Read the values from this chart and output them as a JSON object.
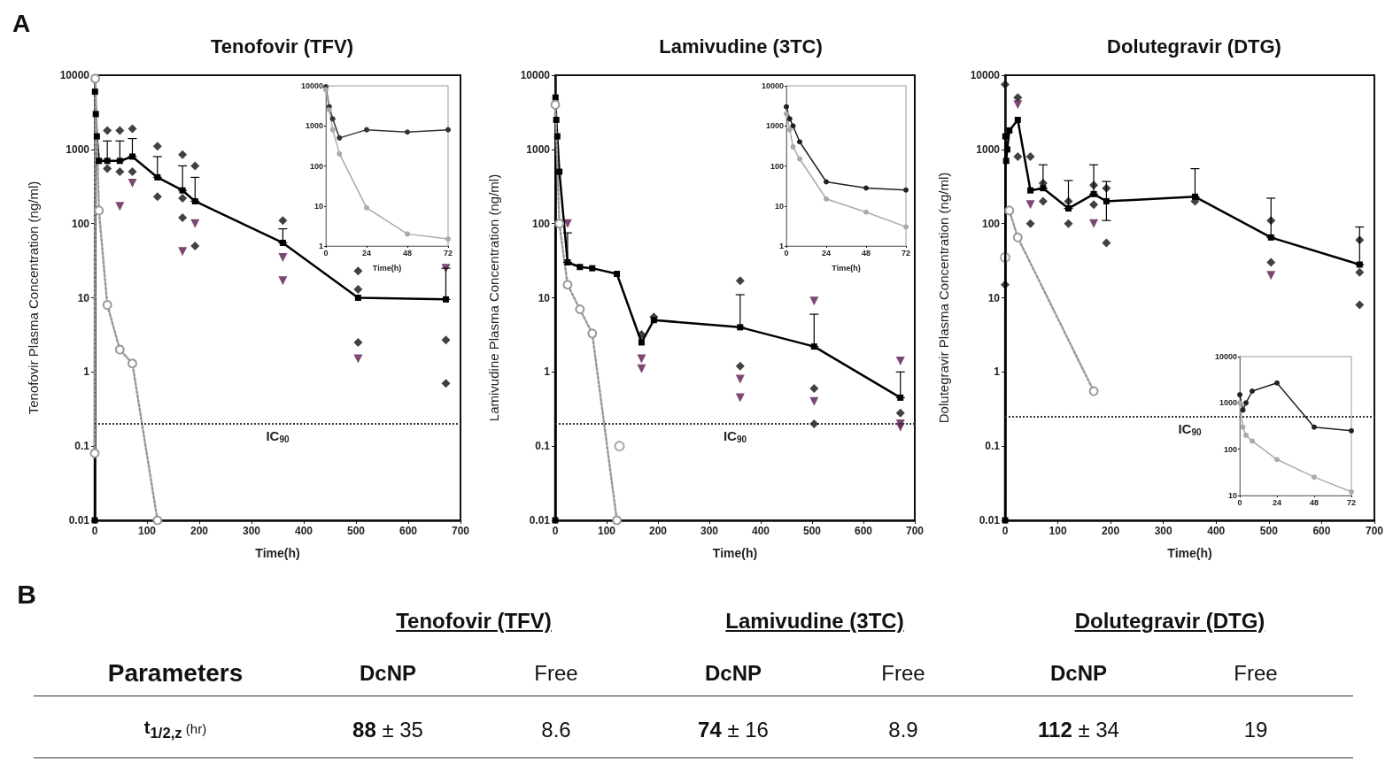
{
  "chart_data": [
    {
      "type": "line",
      "title": "Tenofovir (TFV)",
      "xlabel": "Time(h)",
      "ylabel": "Tenofovir Plasma Concentration (ng/ml)",
      "annotations": [
        "A"
      ],
      "log": "y",
      "xlim": [
        0,
        700
      ],
      "xticks": [
        0,
        100,
        200,
        300,
        400,
        500,
        600,
        700
      ],
      "ylim": [
        0.01,
        10000
      ],
      "yticks": [
        0.01,
        0.1,
        1,
        10,
        100,
        1000,
        10000
      ],
      "ref_lines": [
        {
          "axis": "y",
          "value": 0.2,
          "label": "IC$_{90}$",
          "line_style": "dotted",
          "color": "#333333"
        }
      ],
      "series": [
        {
          "type": "line",
          "color": "#000000",
          "marker": "square",
          "x": [
            0,
            0.5,
            2,
            4,
            8,
            24,
            48,
            72,
            120,
            168,
            192,
            360,
            504,
            672
          ],
          "values": [
            0.01,
            6000,
            3000,
            1500,
            700,
            700,
            700,
            800,
            420,
            280,
            200,
            55,
            10,
            9.5
          ],
          "errors": [
            null,
            null,
            null,
            null,
            null,
            [
              700,
              1300
            ],
            [
              700,
              1300
            ],
            [
              800,
              1400
            ],
            [
              420,
              800
            ],
            [
              280,
              600
            ],
            [
              200,
              420
            ],
            [
              55,
              85
            ],
            null,
            [
              9.5,
              25
            ]
          ]
        },
        {
          "type": "line",
          "color": "#999999",
          "marker": "circle",
          "line_style": "dotted",
          "x": [
            0,
            1,
            8,
            24,
            48,
            72,
            120
          ],
          "values": [
            0.08,
            9000,
            150,
            8,
            2,
            1.3,
            0.01
          ]
        },
        {
          "type": "scatter",
          "color": "#111111",
          "marker": "diamond",
          "x": [
            24,
            48,
            72,
            120,
            168,
            192,
            24,
            48,
            72,
            120,
            168,
            168,
            192,
            360,
            504,
            504,
            504,
            672,
            672
          ],
          "values": [
            1800,
            1800,
            1900,
            1100,
            850,
            600,
            550,
            500,
            500,
            230,
            220,
            120,
            50,
            110,
            23,
            13,
            2.5,
            2.7,
            0.7
          ]
        },
        {
          "type": "scatter",
          "color": "#5b1a50",
          "marker": "triangle",
          "x": [
            48,
            72,
            168,
            192,
            360,
            360,
            504,
            672
          ],
          "values": [
            170,
            350,
            42,
            100,
            35,
            17,
            1.5,
            25
          ]
        }
      ]
    },
    {
      "type": "line",
      "xlabel": "Time(h)",
      "log": "y",
      "xlim": [
        0,
        72
      ],
      "xticks": [
        0,
        24,
        48,
        72
      ],
      "ylim": [
        1,
        10000
      ],
      "yticks": [
        1,
        10,
        100,
        1000,
        10000
      ],
      "series": [
        {
          "type": "line",
          "color": "#333333",
          "marker": "circle",
          "x": [
            0,
            2,
            4,
            8,
            24,
            48,
            72
          ],
          "values": [
            9500,
            3000,
            1500,
            500,
            800,
            700,
            800
          ]
        },
        {
          "type": "line",
          "color": "#aaaaaa",
          "marker": "circle",
          "x": [
            0,
            2,
            4,
            8,
            24,
            48,
            72
          ],
          "values": [
            8000,
            2500,
            800,
            200,
            9,
            2,
            1.5
          ]
        }
      ]
    },
    {
      "type": "line",
      "title": "Lamivudine (3TC)",
      "xlabel": "Time(h)",
      "ylabel": "Lamivudine Plasma Concentration (ng/ml)",
      "log": "y",
      "xlim": [
        0,
        700
      ],
      "xticks": [
        0,
        100,
        200,
        300,
        400,
        500,
        600,
        700
      ],
      "ylim": [
        0.01,
        10000
      ],
      "yticks": [
        0.01,
        0.1,
        1,
        10,
        100,
        1000,
        10000
      ],
      "ref_lines": [
        {
          "axis": "y",
          "value": 0.2,
          "label": "IC$_{90}$",
          "line_style": "dotted",
          "color": "#333333"
        }
      ],
      "series": [
        {
          "type": "line",
          "color": "#000000",
          "marker": "square",
          "x": [
            0,
            0.5,
            2,
            4,
            8,
            24,
            48,
            72,
            120,
            168,
            192,
            360,
            504,
            672
          ],
          "values": [
            0.01,
            5000,
            2500,
            1500,
            500,
            30,
            26,
            25,
            21,
            2.5,
            5,
            4,
            2.2,
            0.45
          ],
          "errors": [
            null,
            null,
            null,
            null,
            null,
            [
              30,
              75
            ],
            null,
            null,
            null,
            null,
            null,
            [
              4,
              11
            ],
            [
              2.2,
              6
            ],
            [
              0.45,
              1
            ]
          ]
        },
        {
          "type": "line",
          "color": "#999999",
          "marker": "circle",
          "line_style": "dotted",
          "x": [
            0,
            8,
            24,
            48,
            72,
            120
          ],
          "values": [
            4000,
            100,
            15,
            7,
            3.3,
            0.01
          ]
        },
        {
          "type": "scatter",
          "color": "#999999",
          "marker": "circle",
          "x": [
            125
          ],
          "values": [
            0.1
          ]
        },
        {
          "type": "scatter",
          "color": "#111111",
          "marker": "diamond",
          "x": [
            168,
            192,
            360,
            360,
            504,
            504,
            672
          ],
          "values": [
            3.2,
            5.5,
            17,
            1.2,
            0.6,
            0.2,
            0.28
          ]
        },
        {
          "type": "scatter",
          "color": "#5b1a50",
          "marker": "triangle",
          "x": [
            24,
            168,
            168,
            360,
            360,
            504,
            504,
            672,
            672,
            672
          ],
          "values": [
            100,
            1.5,
            1.1,
            0.8,
            0.45,
            9,
            0.4,
            1.4,
            0.2,
            0.18
          ]
        }
      ]
    },
    {
      "type": "line",
      "xlabel": "Time(h)",
      "log": "y",
      "xlim": [
        0,
        72
      ],
      "xticks": [
        0,
        24,
        48,
        72
      ],
      "ylim": [
        1,
        10000
      ],
      "yticks": [
        1,
        10,
        100,
        1000,
        10000
      ],
      "series": [
        {
          "type": "line",
          "color": "#222222",
          "marker": "circle",
          "x": [
            0,
            2,
            4,
            8,
            24,
            48,
            72
          ],
          "values": [
            3000,
            1500,
            1000,
            400,
            40,
            28,
            25
          ]
        },
        {
          "type": "line",
          "color": "#aaaaaa",
          "marker": "circle",
          "x": [
            0,
            2,
            4,
            8,
            24,
            48,
            72
          ],
          "values": [
            2000,
            800,
            300,
            150,
            15,
            7,
            3
          ]
        }
      ]
    },
    {
      "type": "line",
      "title": "Dolutegravir (DTG)",
      "xlabel": "Time(h)",
      "ylabel": "Dolutegravir Plasma Concentration (ng/ml)",
      "log": "y",
      "xlim": [
        0,
        700
      ],
      "xticks": [
        0,
        100,
        200,
        300,
        400,
        500,
        600,
        700
      ],
      "ylim": [
        0.01,
        10000
      ],
      "yticks": [
        0.01,
        0.1,
        1,
        10,
        100,
        1000,
        10000
      ],
      "ref_lines": [
        {
          "axis": "y",
          "value": 0.25,
          "label": "IC$_{90}$",
          "line_style": "dotted",
          "color": "#333333"
        }
      ],
      "series": [
        {
          "type": "line",
          "color": "#000000",
          "marker": "square",
          "x": [
            0,
            0.5,
            2,
            4,
            8,
            24,
            48,
            72,
            120,
            168,
            192,
            360,
            504,
            672
          ],
          "values": [
            0.01,
            1500,
            700,
            1000,
            1800,
            2500,
            280,
            300,
            160,
            250,
            200,
            230,
            65,
            28
          ],
          "errors": [
            null,
            null,
            null,
            null,
            null,
            null,
            null,
            [
              300,
              620
            ],
            [
              160,
              380
            ],
            [
              250,
              620
            ],
            [
              110,
              370
            ],
            [
              230,
              550
            ],
            [
              65,
              220
            ],
            [
              28,
              90
            ]
          ]
        },
        {
          "type": "line",
          "color": "#999999",
          "marker": "circle",
          "line_style": "dotted",
          "x": [
            8,
            24,
            168
          ],
          "values": [
            150,
            65,
            0.55
          ]
        },
        {
          "type": "scatter",
          "color": "#999999",
          "marker": "circle",
          "x": [
            0
          ],
          "values": [
            35
          ]
        },
        {
          "type": "scatter",
          "color": "#111111",
          "marker": "diamond",
          "x": [
            0,
            0,
            24,
            24,
            48,
            48,
            72,
            72,
            120,
            120,
            168,
            168,
            192,
            192,
            360,
            504,
            504,
            672,
            672,
            672
          ],
          "values": [
            7500,
            15,
            5000,
            800,
            800,
            100,
            350,
            200,
            100,
            200,
            330,
            180,
            55,
            300,
            200,
            110,
            30,
            60,
            22,
            8
          ]
        },
        {
          "type": "scatter",
          "color": "#5b1a50",
          "marker": "triangle",
          "x": [
            24,
            48,
            168,
            504
          ],
          "values": [
            4000,
            180,
            100,
            20
          ]
        }
      ]
    },
    {
      "type": "line",
      "log": "y",
      "xlim": [
        0,
        72
      ],
      "xticks": [
        0,
        24,
        48,
        72
      ],
      "ylim": [
        10,
        10000
      ],
      "yticks": [
        10,
        100,
        1000,
        10000
      ],
      "series": [
        {
          "type": "line",
          "color": "#222222",
          "marker": "circle",
          "x": [
            0,
            2,
            4,
            8,
            24,
            48,
            72
          ],
          "values": [
            1500,
            700,
            1000,
            1800,
            2700,
            300,
            250
          ]
        },
        {
          "type": "line",
          "color": "#aaaaaa",
          "marker": "circle",
          "x": [
            0,
            2,
            4,
            8,
            24,
            48,
            72
          ],
          "values": [
            1000,
            300,
            200,
            150,
            60,
            25,
            12
          ]
        }
      ]
    },
    {
      "type": "other",
      "title": "B",
      "annotations": [
        "Tenofovir (TFV)",
        "Lamivudine (3TC)",
        "Dolutegravir (DTG)",
        "Parameters",
        "DcNP",
        "Free",
        "DcNP",
        "Free",
        "DcNP",
        "Free",
        "t$_{1/2,z}$ (hr)",
        "88 ± 35",
        "8.6",
        "74 ± 16",
        "8.9",
        "112 ± 34",
        "19"
      ]
    }
  ]
}
